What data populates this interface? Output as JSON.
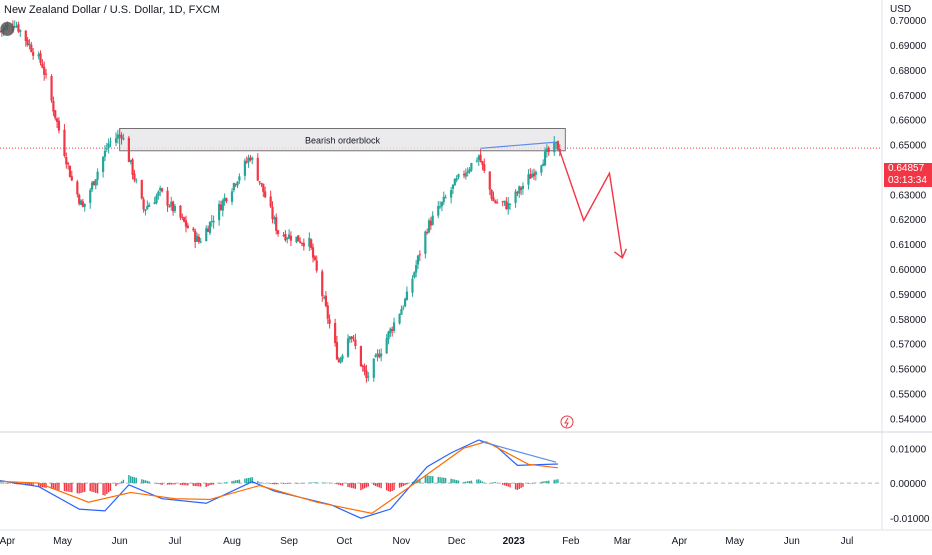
{
  "chart_title": "New Zealand Dollar / U.S. Dollar, 1D, FXCM",
  "currency_label": "USD",
  "price_badge": {
    "price": "0.64857",
    "countdown": "03:13:34"
  },
  "colors": {
    "up": "#26a69a",
    "down": "#f23645",
    "macd": "#2962ff",
    "signal": "#ff6d00",
    "trend": "#5b8def",
    "arrow": "#f23645",
    "box_fill": "#e6e6e8",
    "box_stroke": "#555555"
  },
  "chart_data": [
    {
      "type": "candlestick",
      "title": "New Zealand Dollar / U.S. Dollar, 1D, FXCM",
      "x_axis": {
        "labels": [
          "Apr",
          "May",
          "Jun",
          "Jul",
          "Aug",
          "Sep",
          "Oct",
          "Nov",
          "Dec",
          "2023",
          "Feb",
          "Mar",
          "Apr",
          "May",
          "Jun",
          "Jul"
        ],
        "start": "2022-03-28",
        "end": "2023-07-20"
      },
      "y_axis": {
        "ticks": [
          "0.70000",
          "0.69000",
          "0.68000",
          "0.67000",
          "0.66000",
          "0.65000",
          "0.64000",
          "0.63000",
          "0.62000",
          "0.61000",
          "0.60000",
          "0.59000",
          "0.58000",
          "0.57000",
          "0.56000",
          "0.55000",
          "0.54000"
        ],
        "range": [
          0.5345,
          0.7065
        ]
      },
      "last_price": 0.64857,
      "annotations": {
        "orderblock": {
          "label": "Bearish orderblock",
          "from": "2022-06-01",
          "to": "2023-01-29",
          "top": 0.6565,
          "bottom": 0.6475
        },
        "trendline": [
          {
            "date": "2022-12-14",
            "price": 0.6485
          },
          {
            "date": "2023-01-24",
            "price": 0.651
          }
        ],
        "projection": [
          {
            "date": "2023-01-26",
            "price": 0.6475
          },
          {
            "date": "2023-02-08",
            "price": 0.6195
          },
          {
            "date": "2023-02-22",
            "price": 0.6385
          },
          {
            "date": "2023-03-01",
            "price": 0.6045
          }
        ]
      },
      "series": [
        {
          "name": "",
          "key_points": [
            {
              "date": "2022-03-28",
              "close": 0.6955
            },
            {
              "date": "2022-04-05",
              "close": 0.6992
            },
            {
              "date": "2022-04-20",
              "close": 0.682
            },
            {
              "date": "2022-05-06",
              "close": 0.6355
            },
            {
              "date": "2022-05-12",
              "close": 0.6245
            },
            {
              "date": "2022-05-26",
              "close": 0.6505
            },
            {
              "date": "2022-06-02",
              "close": 0.6545
            },
            {
              "date": "2022-06-14",
              "close": 0.624
            },
            {
              "date": "2022-06-23",
              "close": 0.6308
            },
            {
              "date": "2022-07-14",
              "close": 0.611
            },
            {
              "date": "2022-08-11",
              "close": 0.6455
            },
            {
              "date": "2022-08-26",
              "close": 0.6148
            },
            {
              "date": "2022-09-12",
              "close": 0.6105
            },
            {
              "date": "2022-09-28",
              "close": 0.5628
            },
            {
              "date": "2022-10-04",
              "close": 0.5748
            },
            {
              "date": "2022-10-13",
              "close": 0.5558
            },
            {
              "date": "2022-11-04",
              "close": 0.5888
            },
            {
              "date": "2022-11-15",
              "close": 0.6168
            },
            {
              "date": "2022-12-01",
              "close": 0.6352
            },
            {
              "date": "2022-12-13",
              "close": 0.6455
            },
            {
              "date": "2022-12-21",
              "close": 0.6272
            },
            {
              "date": "2022-12-29",
              "close": 0.6255
            },
            {
              "date": "2023-01-18",
              "close": 0.6455
            },
            {
              "date": "2023-01-24",
              "close": 0.6495
            },
            {
              "date": "2023-01-26",
              "close": 0.6486
            }
          ]
        }
      ]
    },
    {
      "type": "line",
      "title": "",
      "y_axis": {
        "ticks": [
          "0.01000",
          "0.00000",
          "-0.01000"
        ],
        "range": [
          -0.0135,
          0.0147
        ]
      },
      "series": [
        {
          "name": "",
          "points": [
            {
              "date": "2022-03-28",
              "value": 0.0007
            },
            {
              "date": "2022-04-18",
              "value": -0.001
            },
            {
              "date": "2022-05-10",
              "value": -0.0075
            },
            {
              "date": "2022-05-24",
              "value": -0.008
            },
            {
              "date": "2022-06-06",
              "value": -0.0005
            },
            {
              "date": "2022-06-24",
              "value": -0.0045
            },
            {
              "date": "2022-07-18",
              "value": -0.0058
            },
            {
              "date": "2022-08-12",
              "value": 0.0004
            },
            {
              "date": "2022-08-24",
              "value": -0.0023
            },
            {
              "date": "2022-09-24",
              "value": -0.0063
            },
            {
              "date": "2022-10-10",
              "value": -0.0101
            },
            {
              "date": "2022-10-26",
              "value": -0.0075
            },
            {
              "date": "2022-11-15",
              "value": 0.0047
            },
            {
              "date": "2022-11-28",
              "value": 0.0087
            },
            {
              "date": "2022-12-13",
              "value": 0.0124
            },
            {
              "date": "2022-12-22",
              "value": 0.0108
            },
            {
              "date": "2023-01-03",
              "value": 0.0051
            },
            {
              "date": "2023-01-25",
              "value": 0.0055
            }
          ]
        },
        {
          "name": "",
          "points": [
            {
              "date": "2022-03-28",
              "value": 0.0005
            },
            {
              "date": "2022-04-18",
              "value": 0
            },
            {
              "date": "2022-05-15",
              "value": -0.0055
            },
            {
              "date": "2022-06-07",
              "value": -0.0027
            },
            {
              "date": "2022-07-01",
              "value": -0.0045
            },
            {
              "date": "2022-07-20",
              "value": -0.0047
            },
            {
              "date": "2022-08-16",
              "value": -0.0007
            },
            {
              "date": "2022-09-16",
              "value": -0.0055
            },
            {
              "date": "2022-10-16",
              "value": -0.0087
            },
            {
              "date": "2022-11-10",
              "value": 0.0006
            },
            {
              "date": "2022-12-05",
              "value": 0.0101
            },
            {
              "date": "2022-12-17",
              "value": 0.0119
            },
            {
              "date": "2023-01-09",
              "value": 0.0054
            },
            {
              "date": "2023-01-25",
              "value": 0.0044
            }
          ]
        }
      ],
      "trendline": [
        {
          "date": "2022-12-14",
          "value": 0.012
        },
        {
          "date": "2023-01-24",
          "value": 0.006
        }
      ]
    }
  ]
}
